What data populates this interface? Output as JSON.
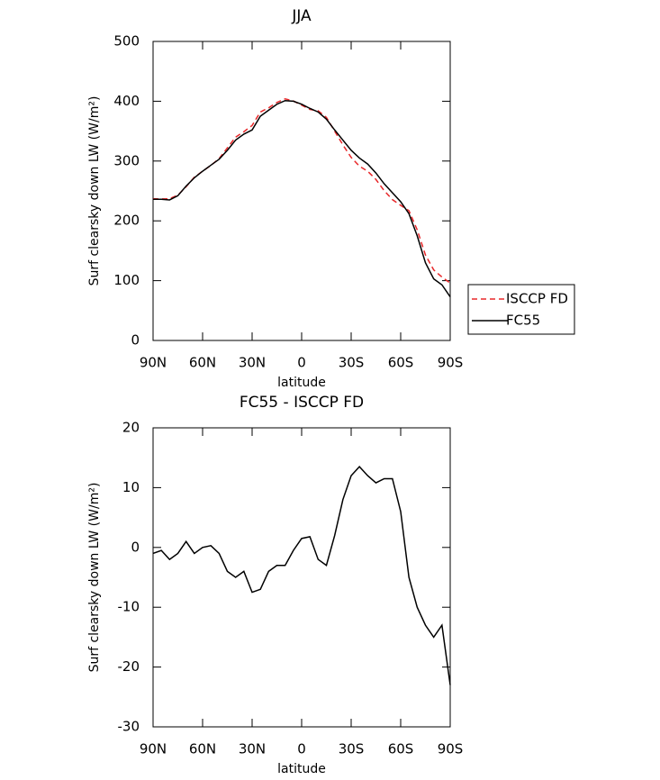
{
  "chart_data": [
    {
      "type": "line",
      "title": "JJA",
      "xlabel": "latitude",
      "ylabel": "Surf clearsky down LW (W/m²)",
      "x": [
        90,
        85,
        80,
        75,
        70,
        65,
        60,
        55,
        50,
        45,
        40,
        35,
        30,
        25,
        20,
        15,
        10,
        5,
        0,
        -5,
        -10,
        -15,
        -20,
        -25,
        -30,
        -35,
        -40,
        -45,
        -50,
        -55,
        -60,
        -65,
        -70,
        -75,
        -80,
        -85,
        -90
      ],
      "series": [
        {
          "name": "ISCCP FD",
          "color": "#e8282a",
          "dash": true,
          "values": [
            237,
            236.5,
            237,
            243,
            257,
            273,
            283,
            292.7,
            304,
            322,
            340,
            349,
            359.5,
            382,
            389,
            398,
            404,
            400.5,
            393.5,
            386.2,
            384,
            373,
            350,
            327,
            306,
            291.5,
            283,
            269.2,
            250.5,
            235.5,
            226,
            217,
            185,
            143,
            118,
            106,
            96
          ]
        },
        {
          "name": "FC55",
          "color": "#000000",
          "dash": false,
          "values": [
            236,
            236,
            235,
            242,
            258,
            272,
            283,
            293,
            303,
            318,
            335,
            345,
            352,
            375,
            385,
            395,
            401,
            400,
            395,
            388,
            382,
            370,
            352,
            335,
            318,
            305,
            295,
            280,
            262,
            247,
            232,
            212,
            175,
            130,
            103,
            93,
            73
          ]
        }
      ],
      "xlim": [
        90,
        -90
      ],
      "xticks": [
        {
          "value": 90,
          "label": "90N"
        },
        {
          "value": 60,
          "label": "60N"
        },
        {
          "value": 30,
          "label": "30N"
        },
        0,
        {
          "value": -30,
          "label": "30S"
        },
        {
          "value": -60,
          "label": "60S"
        },
        {
          "value": -90,
          "label": "90S"
        }
      ],
      "ylim": [
        0,
        500
      ],
      "yticks": [
        0,
        100,
        200,
        300,
        400,
        500
      ],
      "legend": "right"
    },
    {
      "type": "line",
      "title": "FC55 - ISCCP FD",
      "xlabel": "latitude",
      "ylabel": "Surf clearsky down LW (W/m²)",
      "x": [
        90,
        85,
        80,
        75,
        70,
        65,
        60,
        55,
        50,
        45,
        40,
        35,
        30,
        25,
        20,
        15,
        10,
        5,
        0,
        -5,
        -10,
        -15,
        -20,
        -25,
        -30,
        -35,
        -40,
        -45,
        -50,
        -55,
        -60,
        -65,
        -70,
        -75,
        -80,
        -85,
        -90
      ],
      "color": "#000000",
      "values": [
        -1,
        -0.5,
        -2,
        -1,
        1,
        -1,
        0,
        0.3,
        -1,
        -4,
        -5,
        -4,
        -7.5,
        -7,
        -4,
        -3,
        -3,
        -0.5,
        1.5,
        1.8,
        -2,
        -3,
        2,
        8,
        12,
        13.5,
        12,
        10.8,
        11.5,
        11.5,
        6,
        -5,
        -10,
        -13,
        -15,
        -13,
        -23
      ],
      "xlim": [
        90,
        -90
      ],
      "xticks": [
        {
          "value": 90,
          "label": "90N"
        },
        {
          "value": 60,
          "label": "60N"
        },
        {
          "value": 30,
          "label": "30N"
        },
        0,
        {
          "value": -30,
          "label": "30S"
        },
        {
          "value": -60,
          "label": "60S"
        },
        {
          "value": -90,
          "label": "90S"
        }
      ],
      "ylim": [
        -30,
        20
      ],
      "yticks": [
        -30,
        -20,
        -10,
        0,
        10,
        20
      ]
    }
  ]
}
